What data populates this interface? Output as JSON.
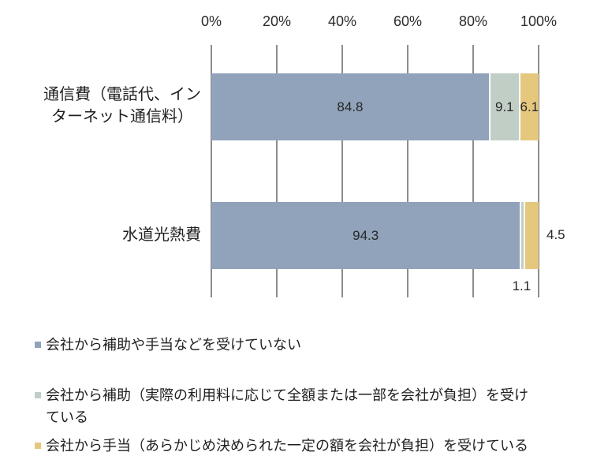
{
  "chart_data": {
    "type": "bar",
    "orientation": "horizontal",
    "stacked": true,
    "grid": true,
    "legend_position": "bottom",
    "xlim": [
      0,
      100
    ],
    "value_unit": "%",
    "x_axis": {
      "position": "top",
      "ticks": [
        "0%",
        "20%",
        "40%",
        "60%",
        "80%",
        "100%"
      ]
    },
    "categories": [
      {
        "label_lines": [
          "通信費（電話代、イン",
          "ターネット通信料）"
        ]
      },
      {
        "label_lines": [
          "水道光熱費"
        ]
      }
    ],
    "series": [
      {
        "name": "会社から補助や手当などを受けていない",
        "color": "#90a3bb",
        "values": [
          84.8,
          94.3
        ]
      },
      {
        "name": "会社から補助（実際の利用料に応じて全額または一部を会社が負担）を受けている",
        "color": "#c0cec6",
        "values": [
          9.1,
          1.1
        ]
      },
      {
        "name": "会社から手当（あらかじめ決められた一定の額を会社が負担）を受けている",
        "color": "#e5c87e",
        "values": [
          6.1,
          4.5
        ]
      }
    ],
    "bars": [
      {
        "segments": [
          {
            "value": 84.8,
            "label": "84.8",
            "label_pos": "inside"
          },
          {
            "value": 9.1,
            "label": "9.1",
            "label_pos": "inside"
          },
          {
            "value": 6.1,
            "label": "6.1",
            "label_pos": "inside"
          }
        ]
      },
      {
        "segments": [
          {
            "value": 94.3,
            "label": "94.3",
            "label_pos": "inside"
          },
          {
            "value": 1.1,
            "label": "1.1",
            "label_pos": "below"
          },
          {
            "value": 4.5,
            "label": "4.5",
            "label_pos": "right"
          }
        ]
      }
    ]
  },
  "colors": {
    "gridline": "#8d8d8d",
    "text": "#262626",
    "background": "#ffffff"
  },
  "legend": {
    "items": [
      {
        "color": "#90a3bb",
        "lines": [
          "会社から補助や手当などを受けていない"
        ]
      },
      {
        "color": "#c0cec6",
        "lines": [
          "会社から補助（実際の利用料に応じて全額または一部を会社が負担）を受け",
          "ている"
        ]
      },
      {
        "color": "#e5c87e",
        "lines": [
          "会社から手当（あらかじめ決められた一定の額を会社が負担）を受けている"
        ]
      }
    ]
  }
}
